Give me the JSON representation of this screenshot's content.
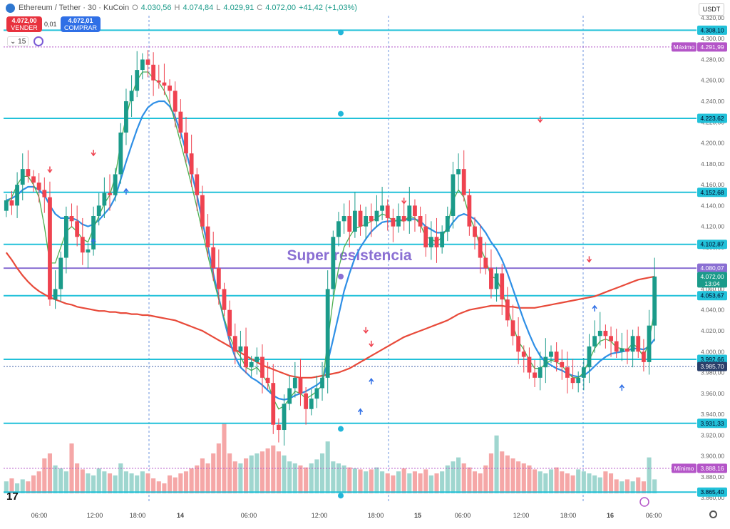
{
  "header": {
    "symbol": "Ethereum / Tether · 30 · KuCoin",
    "open_label": "O",
    "open": "4.030,56",
    "high_label": "H",
    "high": "4.074,84",
    "low_label": "L",
    "low": "4.029,91",
    "close_label": "C",
    "close": "4.072,00",
    "change": "+41,42 (+1,03%)"
  },
  "trade": {
    "sell_price": "4.072,00",
    "sell_label": "VENDER",
    "spread": "0,01",
    "buy_price": "4.072,01",
    "buy_label": "COMPRAR"
  },
  "interval": "15",
  "currency": "USDT",
  "colors": {
    "up": "#1b9b8a",
    "down": "#ef4350",
    "level": "#22c1d9",
    "ema_slow": "#e84a3a",
    "ema_fast": "#2f8fe6",
    "ema_short": "#4caf50",
    "resistance": "#8a6fd3"
  },
  "chart_data": {
    "type": "candlestick",
    "ylim": [
      3856,
      4322
    ],
    "x_tick_labels": [
      "06:00",
      "12:00",
      "18:00",
      "14",
      "06:00",
      "12:00",
      "18:00",
      "15",
      "06:00",
      "12:00",
      "18:00",
      "16",
      "06:00"
    ],
    "y_tick_labels": [
      "4.320,00",
      "4.300,00",
      "4.280,00",
      "4.260,00",
      "4.240,00",
      "4.220,00",
      "4.200,00",
      "4.180,00",
      "4.160,00",
      "4.140,00",
      "4.120,00",
      "4.100,00",
      "4.080,00",
      "4.060,00",
      "4.040,00",
      "4.020,00",
      "4.000,00",
      "3.980,00",
      "3.960,00",
      "3.940,00",
      "3.920,00",
      "3.900,00",
      "3.880,00",
      "3.860,00"
    ],
    "levels": [
      {
        "price": 4308.1,
        "label": "4.308,10"
      },
      {
        "price": 4223.62,
        "label": "4.223,62"
      },
      {
        "price": 4152.68,
        "label": "4.152,68"
      },
      {
        "price": 4102.87,
        "label": "4.102,87"
      },
      {
        "price": 4053.67,
        "label": "4.053,67"
      },
      {
        "price": 3992.66,
        "label": "3.992,66"
      },
      {
        "price": 3931.33,
        "label": "3.931,33"
      },
      {
        "price": 3865.4,
        "label": "3.865,40"
      }
    ],
    "resistance": {
      "price": 4080.07,
      "label": "4.080,07",
      "text": "Super resistencia"
    },
    "max_marker": {
      "price": 4291.99,
      "label": "4.291,99",
      "name": "Máximo"
    },
    "min_marker": {
      "price": 3888.16,
      "label": "3.888,16",
      "name": "Mínimo"
    },
    "last_price": {
      "price": 4072.0,
      "label": "4.072,00",
      "countdown": "13:04"
    },
    "dotted_level": {
      "price": 3985.7,
      "label": "3.985,70"
    },
    "closes": [
      4145,
      4140,
      4160,
      4175,
      4168,
      4162,
      4155,
      4148,
      4050,
      4060,
      4090,
      4130,
      4125,
      4110,
      4095,
      4098,
      4130,
      4140,
      4152,
      4150,
      4170,
      4210,
      4240,
      4250,
      4270,
      4280,
      4275,
      4260,
      4258,
      4255,
      4250,
      4230,
      4210,
      4190,
      4170,
      4150,
      4120,
      4100,
      4080,
      4060,
      4040,
      4015,
      4000,
      4005,
      3985,
      3990,
      3995,
      3975,
      3970,
      3930,
      3925,
      3950,
      3965,
      3975,
      3960,
      3945,
      3955,
      3965,
      3975,
      4060,
      4110,
      4125,
      4130,
      4115,
      4135,
      4120,
      4130,
      4125,
      4135,
      4140,
      4128,
      4120,
      4130,
      4125,
      4140,
      4130,
      4120,
      4100,
      4110,
      4100,
      4115,
      4130,
      4170,
      4175,
      4150,
      4120,
      4110,
      4090,
      4080,
      4060,
      4075,
      4050,
      4030,
      4015,
      4000,
      3995,
      3980,
      3975,
      3985,
      3995,
      4000,
      3990,
      3985,
      3975,
      3970,
      3975,
      3985,
      4005,
      4015,
      4020,
      4015,
      4010,
      4000,
      4003,
      4000,
      4015,
      4000,
      3990,
      4025,
      4072
    ],
    "ema_short": [
      4142,
      4148,
      4160,
      4168,
      4168,
      4160,
      4148,
      4120,
      4085,
      4085,
      4100,
      4115,
      4120,
      4115,
      4108,
      4105,
      4118,
      4130,
      4142,
      4150,
      4168,
      4200,
      4225,
      4245,
      4260,
      4268,
      4268,
      4262,
      4258,
      4250,
      4238,
      4220,
      4200,
      4180,
      4160,
      4138,
      4115,
      4092,
      4070,
      4050,
      4032,
      4015,
      4002,
      3995,
      3985,
      3982,
      3985,
      3978,
      3970,
      3955,
      3945,
      3948,
      3955,
      3962,
      3960,
      3955,
      3958,
      3962,
      3968,
      4010,
      4050,
      4080,
      4100,
      4110,
      4118,
      4120,
      4122,
      4125,
      4128,
      4132,
      4130,
      4125,
      4126,
      4125,
      4130,
      4128,
      4122,
      4110,
      4108,
      4105,
      4110,
      4120,
      4145,
      4155,
      4148,
      4130,
      4118,
      4100,
      4088,
      4072,
      4070,
      4058,
      4042,
      4025,
      4010,
      4002,
      3992,
      3984,
      3984,
      3988,
      3992,
      3990,
      3987,
      3980,
      3975,
      3975,
      3980,
      3992,
      4003,
      4010,
      4012,
      4010,
      4004,
      4003,
      4002,
      4008,
      4003,
      3995,
      4010,
      4040
    ],
    "ema_fast": [
      4145,
      4147,
      4150,
      4155,
      4158,
      4158,
      4155,
      4150,
      4140,
      4132,
      4128,
      4128,
      4128,
      4126,
      4122,
      4120,
      4122,
      4126,
      4132,
      4138,
      4148,
      4165,
      4182,
      4198,
      4213,
      4226,
      4234,
      4238,
      4240,
      4240,
      4235,
      4225,
      4210,
      4192,
      4172,
      4150,
      4125,
      4100,
      4075,
      4052,
      4030,
      4010,
      3995,
      3985,
      3980,
      3975,
      3972,
      3968,
      3963,
      3958,
      3955,
      3954,
      3955,
      3958,
      3960,
      3962,
      3965,
      3968,
      3972,
      3990,
      4012,
      4035,
      4058,
      4075,
      4090,
      4100,
      4108,
      4115,
      4120,
      4124,
      4125,
      4125,
      4126,
      4126,
      4127,
      4127,
      4125,
      4120,
      4117,
      4114,
      4114,
      4116,
      4124,
      4130,
      4132,
      4130,
      4127,
      4121,
      4114,
      4105,
      4098,
      4088,
      4075,
      4060,
      4045,
      4030,
      4017,
      4005,
      3996,
      3990,
      3987,
      3984,
      3982,
      3979,
      3977,
      3976,
      3977,
      3981,
      3986,
      3991,
      3995,
      3998,
      3999,
      4000,
      4001,
      4003,
      4003,
      4002,
      4005,
      4012
    ],
    "ema_slow": [
      4095,
      4088,
      4080,
      4073,
      4067,
      4062,
      4058,
      4055,
      4052,
      4050,
      4048,
      4046,
      4045,
      4043,
      4042,
      4041,
      4040,
      4039,
      4039,
      4038,
      4038,
      4037,
      4037,
      4036,
      4036,
      4035,
      4035,
      4034,
      4033,
      4032,
      4031,
      4030,
      4028,
      4026,
      4024,
      4022,
      4020,
      4017,
      4014,
      4011,
      4008,
      4005,
      4002,
      3999,
      3996,
      3993,
      3990,
      3987,
      3985,
      3983,
      3981,
      3979,
      3977,
      3976,
      3975,
      3975,
      3975,
      3976,
      3977,
      3978,
      3979,
      3980,
      3982,
      3984,
      3987,
      3990,
      3993,
      3996,
      3999,
      4002,
      4005,
      4008,
      4011,
      4014,
      4016,
      4018,
      4020,
      4022,
      4024,
      4026,
      4028,
      4030,
      4033,
      4036,
      4038,
      4040,
      4041,
      4042,
      4043,
      4044,
      4044,
      4044,
      4043,
      4043,
      4042,
      4042,
      4042,
      4042,
      4043,
      4044,
      4045,
      4046,
      4047,
      4048,
      4049,
      4050,
      4051,
      4052,
      4053,
      4055,
      4057,
      4059,
      4061,
      4063,
      4065,
      4067,
      4069,
      4070,
      4071,
      4072
    ],
    "volume": [
      0.12,
      0.15,
      0.1,
      0.14,
      0.12,
      0.18,
      0.22,
      0.35,
      0.4,
      0.28,
      0.25,
      0.22,
      0.5,
      0.3,
      0.24,
      0.2,
      0.18,
      0.25,
      0.22,
      0.2,
      0.18,
      0.3,
      0.22,
      0.2,
      0.18,
      0.22,
      0.2,
      0.15,
      0.12,
      0.1,
      0.18,
      0.16,
      0.2,
      0.22,
      0.25,
      0.28,
      0.35,
      0.3,
      0.4,
      0.5,
      0.7,
      0.4,
      0.32,
      0.3,
      0.35,
      0.38,
      0.4,
      0.42,
      0.45,
      0.48,
      0.42,
      0.38,
      0.32,
      0.3,
      0.28,
      0.26,
      0.3,
      0.34,
      0.4,
      0.52,
      0.32,
      0.3,
      0.28,
      0.26,
      0.25,
      0.24,
      0.22,
      0.24,
      0.26,
      0.22,
      0.2,
      0.18,
      0.22,
      0.25,
      0.2,
      0.22,
      0.2,
      0.24,
      0.18,
      0.2,
      0.22,
      0.28,
      0.32,
      0.36,
      0.3,
      0.26,
      0.22,
      0.2,
      0.28,
      0.4,
      0.58,
      0.42,
      0.38,
      0.35,
      0.32,
      0.3,
      0.28,
      0.24,
      0.22,
      0.2,
      0.24,
      0.26,
      0.22,
      0.2,
      0.18,
      0.24,
      0.22,
      0.2,
      0.18,
      0.16,
      0.22,
      0.2,
      0.14,
      0.12,
      0.14,
      0.12,
      0.16,
      0.12,
      0.36,
      0.14
    ]
  }
}
